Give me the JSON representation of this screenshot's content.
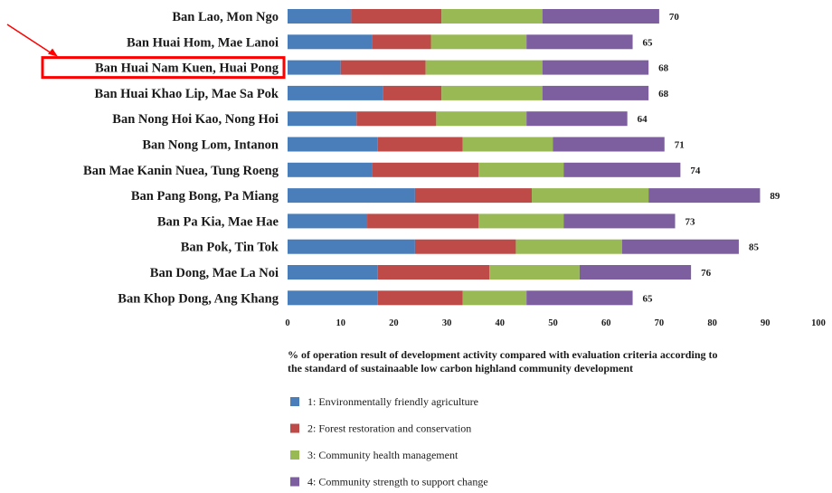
{
  "chart_data": {
    "type": "bar",
    "orientation": "horizontal",
    "stacked": true,
    "categories": [
      "Ban Lao, Mon Ngo",
      "Ban Huai Hom, Mae Lanoi",
      "Ban Huai Nam Kuen, Huai Pong",
      "Ban Huai Khao Lip, Mae Sa Pok",
      "Ban Nong Hoi Kao, Nong Hoi",
      "Ban Nong Lom, Intanon",
      "Ban Mae Kanin Nuea, Tung Roeng",
      "Ban Pang Bong, Pa Miang",
      "Ban Pa Kia, Mae Hae",
      "Ban Pok, Tin Tok",
      "Ban Dong, Mae La Noi",
      "Ban Khop Dong, Ang Khang"
    ],
    "series": [
      {
        "name": "1: Environmentally friendly agriculture",
        "color": "#4a7ebb",
        "values": [
          12,
          16,
          10,
          18,
          13,
          17,
          16,
          24,
          15,
          24,
          17,
          17
        ]
      },
      {
        "name": "2: Forest restoration and conservation",
        "color": "#be4b48",
        "values": [
          17,
          11,
          16,
          11,
          15,
          16,
          20,
          22,
          21,
          19,
          21,
          16
        ]
      },
      {
        "name": "3: Community health management",
        "color": "#98b954",
        "values": [
          19,
          18,
          22,
          19,
          17,
          17,
          16,
          22,
          16,
          20,
          17,
          12
        ]
      },
      {
        "name": "4: Community strength to support change",
        "color": "#7d5fa0",
        "values": [
          22,
          20,
          20,
          20,
          19,
          21,
          22,
          21,
          21,
          22,
          21,
          20
        ]
      }
    ],
    "totals": [
      "70",
      "65",
      "68",
      "68",
      "64",
      "71",
      "74",
      "89",
      "73",
      "85",
      "76",
      "65"
    ],
    "xlim": [
      0,
      100
    ],
    "xticks": [
      "0",
      "10",
      "20",
      "30",
      "40",
      "50",
      "60",
      "70",
      "80",
      "90",
      "100"
    ],
    "xlabel_lines": [
      "% of operation result of development activity compared with evaluation criteria according to",
      "the standard of sustainaable low carbon highland community development"
    ],
    "legend_position": "bottom",
    "highlight": {
      "category_index": 2,
      "color": "#ff0000",
      "arrow": true
    },
    "grid": false
  }
}
